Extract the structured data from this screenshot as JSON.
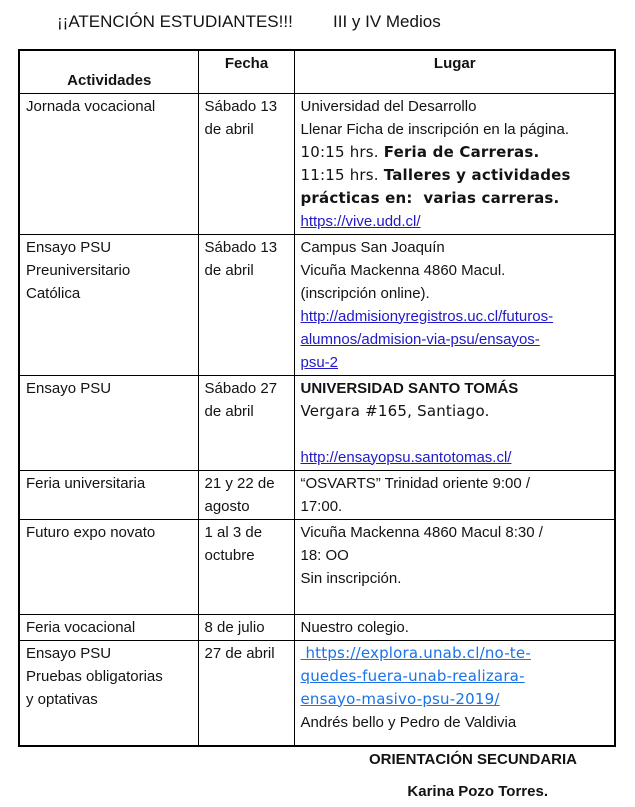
{
  "title": {
    "left": "¡¡ATENCIÓN ESTUDIANTES!!!",
    "right": "III y IV Medios"
  },
  "colors": {
    "hyperlink_blue": "#2119c8",
    "hyperlink_light_blue": "#1a73e8",
    "text": "#131313",
    "table_border": "#000000"
  },
  "table": {
    "headers": {
      "actividades": "Actividades",
      "fecha": "Fecha",
      "lugar": "Lugar"
    },
    "rows": [
      {
        "actividad": "Jornada vocacional",
        "fecha": "Sábado 13\nde abril",
        "lugar": [
          [
            {
              "t": "Universidad del Desarrollo"
            }
          ],
          [
            {
              "t": "Llenar Ficha de inscripción en la página."
            }
          ],
          [
            {
              "t": "10:15 hrs. ",
              "f": "arial"
            },
            {
              "t": "Feria de Carreras.",
              "f": "arial",
              "b": true
            }
          ],
          [
            {
              "t": "11:15 hrs. ",
              "f": "arial"
            },
            {
              "t": "Talleres y actividades\nprácticas en:  varias carreras.",
              "f": "arial",
              "b": true
            }
          ],
          [
            {
              "t": "https://vive.udd.cl/",
              "link": "https://vive.udd.cl/"
            }
          ]
        ]
      },
      {
        "actividad": "Ensayo PSU\nPreuniversitario\nCatólica",
        "fecha": "Sábado 13\nde abril",
        "lugar": [
          [
            {
              "t": "Campus San Joaquín"
            }
          ],
          [
            {
              "t": "Vicuña Mackenna 4860 Macul."
            }
          ],
          [
            {
              "t": "(inscripción online)."
            }
          ],
          [
            {
              "t": "http://admisionyregistros.uc.cl/futuros-\nalumnos/admision-via-psu/ensayos-\npsu-2",
              "link": "http://admisionyregistros.uc.cl/futuros-alumnos/admision-via-psu/ensayos-psu-2"
            }
          ]
        ]
      },
      {
        "actividad": "Ensayo PSU",
        "fecha": "Sábado 27\nde abril",
        "lugar": [
          [
            {
              "t": "UNIVERSIDAD SANTO TOMÁS",
              "b": true
            }
          ],
          [
            {
              "t": "Vergara #165, Santiago.",
              "f": "arial"
            }
          ],
          [
            {
              "t": ""
            }
          ],
          [
            {
              "t": "http://ensayopsu.santotomas.cl/",
              "link": "http://ensayopsu.santotomas.cl/"
            }
          ]
        ]
      },
      {
        "actividad": "Feria universitaria",
        "fecha": "21 y 22 de\nagosto",
        "lugar": [
          [
            {
              "t": "“OSVARTS” Trinidad oriente 9:00 /\n17:00."
            }
          ]
        ]
      },
      {
        "actividad": "Futuro expo novato",
        "fecha": "1 al 3 de\noctubre",
        "lugar": [
          [
            {
              "t": "Vicuña Mackenna 4860 Macul 8:30 /\n18: OO"
            }
          ],
          [
            {
              "t": "Sin inscripción."
            }
          ]
        ]
      },
      {
        "actividad": "Feria vocacional",
        "fecha": "8 de julio",
        "lugar": [
          [
            {
              "t": "Nuestro colegio."
            }
          ]
        ]
      },
      {
        "actividad": "Ensayo PSU\nPruebas obligatorias\ny optativas",
        "fecha": "27 de abril",
        "lugar": [
          [
            {
              "t": " https://explora.unab.cl/no-te-\nquedes-fuera-unab-realizara-\nensayo-masivo-psu-2019/",
              "link": "https://explora.unab.cl/no-te-quedes-fuera-unab-realizara-ensayo-masivo-psu-2019/",
              "variant": "light",
              "f": "arial"
            }
          ],
          [
            {
              "t": "Andrés bello y Pedro de Valdivia"
            }
          ]
        ]
      }
    ]
  },
  "footer": {
    "line1": "ORIENTACIÓN SECUNDARIA",
    "line2": "Karina Pozo Torres."
  }
}
